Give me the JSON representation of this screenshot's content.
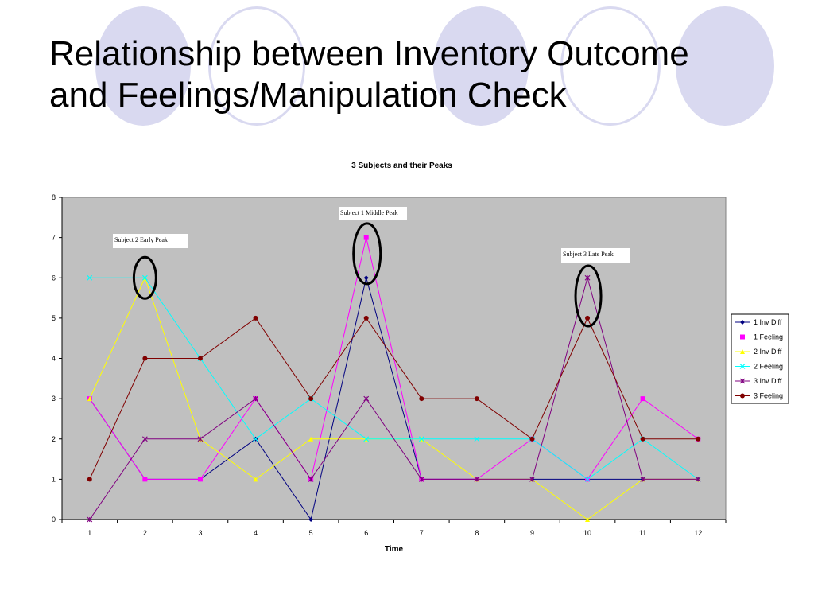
{
  "slide": {
    "title": "Relationship between Inventory Outcome\nand Feelings/Manipulation Check",
    "decor_color": "#d9d9f0"
  },
  "chart_data": {
    "type": "line",
    "title": "3 Subjects and their Peaks",
    "xlabel": "Time",
    "ylabel": "",
    "x": [
      1,
      2,
      3,
      4,
      5,
      6,
      7,
      8,
      9,
      10,
      11,
      12
    ],
    "ylim": [
      0,
      8
    ],
    "yticks": [
      0,
      1,
      2,
      3,
      4,
      5,
      6,
      7,
      8
    ],
    "plot_background": "#c0c0c0",
    "grid": false,
    "legend_position": "right",
    "series": [
      {
        "name": "1 Inv Diff",
        "color": "#000080",
        "marker": "diamond",
        "values": [
          3,
          1,
          1,
          2,
          0,
          6,
          1,
          1,
          1,
          1,
          1,
          1
        ]
      },
      {
        "name": "1 Feeling",
        "color": "#ff00ff",
        "marker": "square",
        "values": [
          3,
          1,
          1,
          3,
          1,
          7,
          1,
          1,
          2,
          1,
          3,
          2
        ]
      },
      {
        "name": "2 Inv Diff",
        "color": "#ffff00",
        "marker": "triangle",
        "values": [
          3,
          6,
          2,
          1,
          2,
          2,
          2,
          1,
          1,
          0,
          1,
          1
        ]
      },
      {
        "name": "2 Feeling",
        "color": "#00ffff",
        "marker": "x",
        "values": [
          6,
          6,
          4,
          2,
          3,
          2,
          2,
          2,
          2,
          1,
          2,
          1
        ]
      },
      {
        "name": "3 Inv Diff",
        "color": "#800080",
        "marker": "star",
        "values": [
          0,
          2,
          2,
          3,
          1,
          3,
          1,
          1,
          1,
          6,
          1,
          1
        ]
      },
      {
        "name": "3 Feeling",
        "color": "#800000",
        "marker": "circle",
        "values": [
          1,
          4,
          4,
          5,
          3,
          5,
          3,
          3,
          2,
          5,
          2,
          2
        ]
      }
    ],
    "annotations": [
      {
        "text": "Subject 2 Early Peak",
        "x": 2,
        "y": 6
      },
      {
        "text": "Subject 1 Middle Peak",
        "x": 6,
        "y": 7
      },
      {
        "text": "Subject 3 Late Peak",
        "x": 10,
        "y": 5.5
      }
    ]
  }
}
